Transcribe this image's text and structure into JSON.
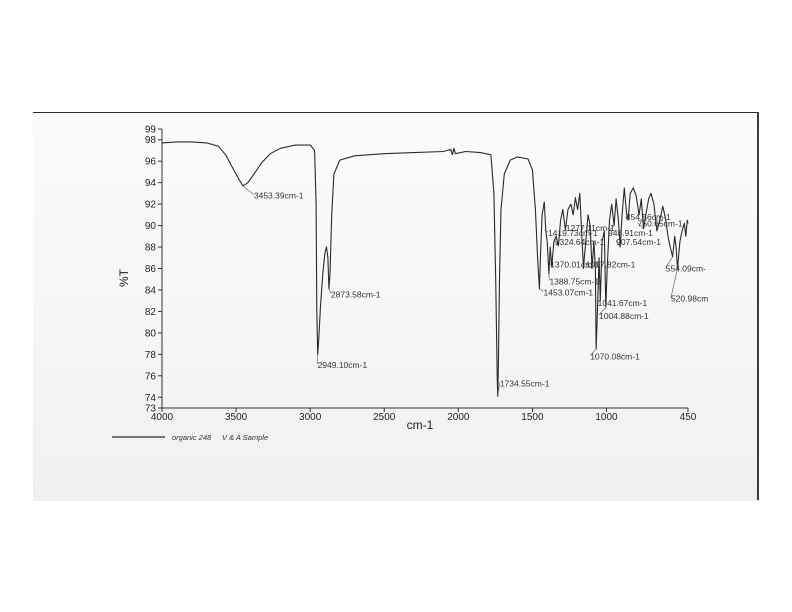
{
  "chart_data": {
    "type": "line",
    "xlabel": "cm-1",
    "ylabel": "%T",
    "xlim": [
      4000,
      450
    ],
    "ylim": [
      73,
      99
    ],
    "x_reversed": true,
    "x_ticks": [
      4000,
      3500,
      3000,
      2500,
      2000,
      1500,
      1000,
      450
    ],
    "x_tick_labels": [
      "4000",
      "3500",
      "3000",
      "2500",
      "2000",
      "1500",
      "1000",
      "450"
    ],
    "y_ticks": [
      73,
      74,
      76,
      78,
      80,
      82,
      84,
      86,
      88,
      90,
      92,
      94,
      96,
      98,
      99
    ],
    "y_tick_labels": [
      "73",
      "74",
      "76",
      "78",
      "80",
      "82",
      "84",
      "86",
      "88",
      "90",
      "92",
      "94",
      "96",
      "98",
      "99"
    ],
    "grid": false,
    "legend_position": "bottom-left",
    "series": [
      {
        "name": "organic 248   V & A Sample",
        "color": "#2a2a2a",
        "points": [
          [
            4000,
            97.7
          ],
          [
            3900,
            97.8
          ],
          [
            3800,
            97.8
          ],
          [
            3700,
            97.7
          ],
          [
            3620,
            97.4
          ],
          [
            3570,
            96.6
          ],
          [
            3520,
            95.3
          ],
          [
            3480,
            94.3
          ],
          [
            3453.39,
            93.7
          ],
          [
            3420,
            94.0
          ],
          [
            3380,
            94.8
          ],
          [
            3330,
            95.8
          ],
          [
            3270,
            96.7
          ],
          [
            3200,
            97.2
          ],
          [
            3100,
            97.5
          ],
          [
            3000,
            97.5
          ],
          [
            2970,
            97.0
          ],
          [
            2960,
            92.0
          ],
          [
            2955,
            82.0
          ],
          [
            2949.1,
            78.0
          ],
          [
            2942,
            79.5
          ],
          [
            2930,
            82.5
          ],
          [
            2915,
            85.5
          ],
          [
            2900,
            87.5
          ],
          [
            2890,
            88.0
          ],
          [
            2880,
            87.0
          ],
          [
            2873.58,
            84.1
          ],
          [
            2866,
            85.5
          ],
          [
            2855,
            91.0
          ],
          [
            2840,
            94.8
          ],
          [
            2800,
            96.1
          ],
          [
            2700,
            96.5
          ],
          [
            2500,
            96.7
          ],
          [
            2300,
            96.8
          ],
          [
            2100,
            96.9
          ],
          [
            2050,
            97.1
          ],
          [
            2040,
            96.6
          ],
          [
            2030,
            97.2
          ],
          [
            2020,
            96.7
          ],
          [
            1950,
            96.9
          ],
          [
            1850,
            96.8
          ],
          [
            1780,
            96.6
          ],
          [
            1760,
            93.0
          ],
          [
            1748,
            85.0
          ],
          [
            1738,
            76.0
          ],
          [
            1734.55,
            74.1
          ],
          [
            1730,
            76.5
          ],
          [
            1722,
            85.0
          ],
          [
            1712,
            91.5
          ],
          [
            1690,
            94.8
          ],
          [
            1650,
            96.1
          ],
          [
            1600,
            96.4
          ],
          [
            1530,
            96.2
          ],
          [
            1500,
            95.2
          ],
          [
            1480,
            91.5
          ],
          [
            1465,
            87.0
          ],
          [
            1453.07,
            84.1
          ],
          [
            1445,
            87.5
          ],
          [
            1435,
            91.0
          ],
          [
            1420,
            92.2
          ],
          [
            1410,
            89.5
          ],
          [
            1400,
            88.5
          ],
          [
            1388.75,
            85.5
          ],
          [
            1380,
            88.0
          ],
          [
            1370.01,
            86.2
          ],
          [
            1355,
            88.5
          ],
          [
            1340,
            89.0
          ],
          [
            1324.64,
            88.1
          ],
          [
            1310,
            90.5
          ],
          [
            1295,
            91.5
          ],
          [
            1277.11,
            89.6
          ],
          [
            1260,
            91.5
          ],
          [
            1240,
            92.0
          ],
          [
            1225,
            91.0
          ],
          [
            1210,
            92.6
          ],
          [
            1195,
            91.5
          ],
          [
            1180,
            93.0
          ],
          [
            1170,
            90.0
          ],
          [
            1155,
            86.0
          ],
          [
            1150,
            87.0
          ],
          [
            1140,
            88.5
          ],
          [
            1125,
            91.0
          ],
          [
            1110,
            90.0
          ],
          [
            1097.82,
            86.0
          ],
          [
            1085,
            88.5
          ],
          [
            1075,
            86.0
          ],
          [
            1070.08,
            78.5
          ],
          [
            1065,
            80.5
          ],
          [
            1050,
            87.0
          ],
          [
            1041.67,
            83.0
          ],
          [
            1030,
            88.5
          ],
          [
            1015,
            89.5
          ],
          [
            1004.88,
            82.4
          ],
          [
            995,
            86.0
          ],
          [
            980,
            90.5
          ],
          [
            965,
            92.0
          ],
          [
            948.91,
            90.0
          ],
          [
            935,
            92.5
          ],
          [
            920,
            90.5
          ],
          [
            907.54,
            88.0
          ],
          [
            895,
            91.0
          ],
          [
            880,
            93.5
          ],
          [
            865,
            91.2
          ],
          [
            854.56,
            90.5
          ],
          [
            840,
            93.0
          ],
          [
            820,
            93.5
          ],
          [
            800,
            92.8
          ],
          [
            780,
            91.0
          ],
          [
            765,
            92.5
          ],
          [
            750.65,
            89.7
          ],
          [
            735,
            91.0
          ],
          [
            715,
            92.5
          ],
          [
            700,
            93.0
          ],
          [
            680,
            92.0
          ],
          [
            660,
            89.5
          ],
          [
            640,
            90.5
          ],
          [
            620,
            91.8
          ],
          [
            600,
            90.5
          ],
          [
            585,
            89.0
          ],
          [
            570,
            88.0
          ],
          [
            554.09,
            87.1
          ],
          [
            540,
            89.0
          ],
          [
            530,
            88.0
          ],
          [
            520.98,
            86.0
          ],
          [
            505,
            88.5
          ],
          [
            490,
            89.5
          ],
          [
            475,
            90.2
          ],
          [
            465,
            89.0
          ],
          [
            455,
            90.5
          ],
          [
            450,
            90.2
          ]
        ]
      }
    ],
    "annotations": [
      {
        "text": "3453.39cm-1",
        "x": 3453.39,
        "y": 93.7,
        "lx": 3380,
        "ly": 92.6
      },
      {
        "text": "2873.58cm-1",
        "x": 2873.58,
        "y": 84.1,
        "lx": 2860,
        "ly": 83.4
      },
      {
        "text": "2949.10cm-1",
        "x": 2949.1,
        "y": 78.0,
        "lx": 2950,
        "ly": 76.8
      },
      {
        "text": "1734.55cm-1",
        "x": 1734.55,
        "y": 74.1,
        "lx": 1720,
        "ly": 75.1
      },
      {
        "text": "1453.07cm-1",
        "x": 1453.07,
        "y": 84.1,
        "lx": 1425,
        "ly": 83.6
      },
      {
        "text": "1388.75cm-1",
        "x": 1388.75,
        "y": 85.5,
        "lx": 1385,
        "ly": 84.6
      },
      {
        "text": "1370.01cm-1",
        "x": 1370.01,
        "y": 86.2,
        "lx": 1380,
        "ly": 86.2
      },
      {
        "text": "1097.82cm-1",
        "x": 1097.82,
        "y": 86.0,
        "lx": 1140,
        "ly": 86.2
      },
      {
        "text": "1419.73cm-1",
        "x": 1419.73,
        "y": 89.6,
        "lx": 1395,
        "ly": 89.1
      },
      {
        "text": "1277.11cm-1",
        "x": 1277.11,
        "y": 89.6,
        "lx": 1275,
        "ly": 89.6
      },
      {
        "text": "1324.64cm-1",
        "x": 1324.64,
        "y": 88.1,
        "lx": 1350,
        "ly": 88.3
      },
      {
        "text": "1041.67cm-1",
        "x": 1041.67,
        "y": 83.0,
        "lx": 1060,
        "ly": 82.6
      },
      {
        "text": "1004.88cm-1",
        "x": 1004.88,
        "y": 82.4,
        "lx": 1050,
        "ly": 81.4
      },
      {
        "text": "1070.08cm-1",
        "x": 1070.08,
        "y": 78.5,
        "lx": 1110,
        "ly": 77.6
      },
      {
        "text": "854.56cm-1",
        "x": 854.56,
        "y": 90.5,
        "lx": 870,
        "ly": 90.6
      },
      {
        "text": "750.65cm-1",
        "x": 750.65,
        "y": 89.7,
        "lx": 790,
        "ly": 90.0
      },
      {
        "text": "948.91cm-1",
        "x": 948.91,
        "y": 90.0,
        "lx": 990,
        "ly": 89.1
      },
      {
        "text": "907.54cm-1",
        "x": 907.54,
        "y": 88.0,
        "lx": 935,
        "ly": 88.3
      },
      {
        "text": "554.09cm-",
        "x": 554.09,
        "y": 87.1,
        "lx": 600,
        "ly": 85.8
      },
      {
        "text": "520.98cm",
        "x": 520.98,
        "y": 86.0,
        "lx": 565,
        "ly": 83.0
      }
    ],
    "legend": {
      "line_label": "organic 248",
      "sample_label": "V & A Sample"
    }
  }
}
